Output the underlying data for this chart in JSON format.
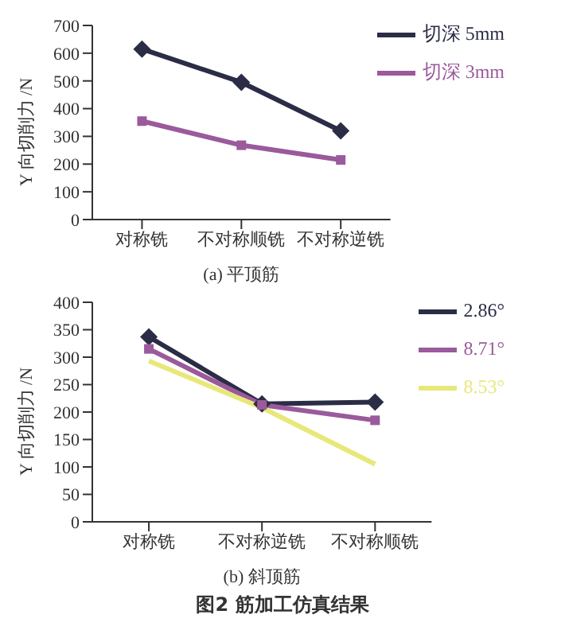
{
  "chart_data": [
    {
      "type": "line",
      "xlabel": "(a) 平顶筋",
      "ylabel": "Y 向切削力 /N",
      "categories": [
        "对称铣",
        "不对称顺铣",
        "不对称逆铣"
      ],
      "ylim": [
        0,
        700
      ],
      "yticks": [
        0,
        100,
        200,
        300,
        400,
        500,
        600,
        700
      ],
      "legend": "top right",
      "grid": false,
      "series": [
        {
          "name": "切深 5mm",
          "color": "#2a2d45",
          "marker": "diamond",
          "values": [
            615,
            495,
            320
          ]
        },
        {
          "name": "切深 3mm",
          "color": "#9b5a9b",
          "marker": "square",
          "values": [
            355,
            268,
            215
          ]
        }
      ]
    },
    {
      "type": "line",
      "xlabel": "(b) 斜顶筋",
      "ylabel": "Y 向切削力 /N",
      "categories": [
        "对称铣",
        "不对称逆铣",
        "不对称顺铣"
      ],
      "ylim": [
        0,
        400
      ],
      "yticks": [
        0,
        50,
        100,
        150,
        200,
        250,
        300,
        350,
        400
      ],
      "legend": "top right",
      "grid": false,
      "annotations": [
        "图2  筋加工仿真结果"
      ],
      "series": [
        {
          "name": "2.86°",
          "color": "#2a2d45",
          "marker": "diamond",
          "values": [
            337,
            215,
            218
          ]
        },
        {
          "name": "8.71°",
          "color": "#9b5a9b",
          "marker": "square",
          "values": [
            315,
            213,
            185
          ]
        },
        {
          "name": "8.53°",
          "color": "#e8e87a",
          "marker": "none",
          "values": [
            293,
            208,
            105
          ]
        }
      ]
    }
  ]
}
